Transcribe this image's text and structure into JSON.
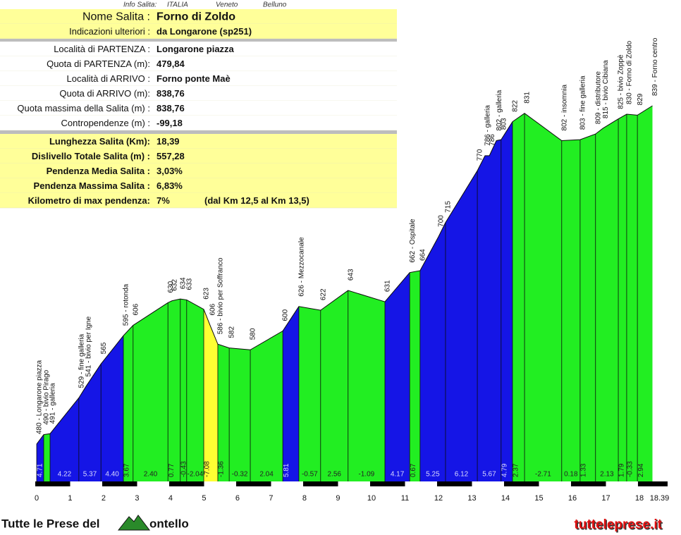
{
  "info": {
    "header": [
      "Info Salita:",
      "ITALIA",
      "Veneto",
      "Belluno"
    ],
    "top": [
      {
        "label": "Nome Salita :",
        "value": "Forno di Zoldo"
      },
      {
        "label": "Indicazioni ulteriori :",
        "value": "da Longarone (sp251)"
      }
    ],
    "details": [
      {
        "label": "Località di PARTENZA :",
        "value": "Longarone piazza"
      },
      {
        "label": "Quota di PARTENZA (m):",
        "value": "479,84"
      },
      {
        "label": "Località di ARRIVO :",
        "value": "Forno ponte Maè"
      },
      {
        "label": "Quota di ARRIVO (m):",
        "value": "838,76"
      },
      {
        "label": "Quota massima della Salita (m) :",
        "value": "838,76"
      },
      {
        "label": "Contropendenze (m) :",
        "value": "-99,18"
      }
    ],
    "summary": [
      {
        "label": "Lunghezza Salita (Km):",
        "value": "18,39"
      },
      {
        "label": "Dislivello Totale Salita (m) :",
        "value": "557,28"
      },
      {
        "label": "Pendenza Media Salita :",
        "value": "3,03%"
      },
      {
        "label": "Pendenza Massima Salita :",
        "value": "6,83%"
      },
      {
        "label": "Kilometro di max pendenza:",
        "value": "7%",
        "note": "(dal Km 12,5 al Km 13,5)"
      }
    ]
  },
  "chart_data": {
    "type": "area",
    "x": [
      0,
      0.21,
      0.4,
      1.26,
      1.47,
      1.92,
      2.59,
      2.88,
      3.92,
      4.04,
      4.29,
      4.48,
      4.99,
      5.18,
      5.41,
      5.75,
      6.38,
      7.35,
      7.83,
      8.48,
      9.3,
      10.4,
      11.14,
      11.45,
      12,
      12.21,
      13.16,
      13.39,
      13.52,
      13.73,
      13.87,
      14.21,
      14.57,
      15.68,
      16.23,
      16.69,
      16.91,
      17.37,
      17.62,
      17.94,
      18.39
    ],
    "values": [
      480,
      490,
      491,
      529,
      541,
      565,
      595,
      606,
      630,
      632,
      634,
      633,
      623,
      606,
      586,
      582,
      580,
      600,
      626,
      622,
      643,
      631,
      662,
      664,
      700,
      715,
      770,
      786,
      786,
      802,
      803,
      822,
      831,
      802,
      803,
      809,
      815,
      825,
      830,
      829,
      839
    ],
    "value_labels": [
      "480 - Longarone piazza",
      "490 - bivio Pirago",
      "491 - galleria",
      "529 - fine galleria",
      "541 - bivio per Igne",
      null,
      "595 - rotonda",
      null,
      null,
      null,
      null,
      null,
      null,
      null,
      "586 - bivio per Soffranco",
      null,
      null,
      null,
      "626 - Mezzocanale",
      null,
      null,
      null,
      "662 - Ospitale",
      null,
      null,
      null,
      null,
      "786 - galleria",
      null,
      "802 - galleria",
      null,
      null,
      null,
      "802 - insomnia",
      "803 - fine galleria",
      "809 - distributore",
      "815 - bivio Cibiana",
      "825 - bivio Zoppè",
      "830 - Forno di Zoldo",
      null,
      "839 - Forno centro"
    ],
    "segments": {
      "starts": [
        0,
        0.21,
        0.4,
        1.26,
        1.92,
        2.59,
        2.88,
        3.92,
        4.29,
        4.48,
        4.99,
        5.41,
        5.75,
        6.38,
        7.35,
        7.83,
        8.48,
        9.3,
        10.4,
        11.14,
        11.45,
        12.21,
        13.16,
        13.87,
        14.21,
        14.57,
        15.68,
        16.23,
        16.69,
        17.37,
        17.62,
        17.94
      ],
      "grades": [
        4.71,
        null,
        4.22,
        5.37,
        4.4,
        3.67,
        2.4,
        0.77,
        -0.43,
        -2.04,
        -7.08,
        -1.36,
        -0.32,
        2.04,
        5.81,
        -0.57,
        2.56,
        -1.09,
        4.17,
        0.67,
        5.25,
        6.12,
        5.67,
        4.79,
        2.37,
        -2.71,
        0.18,
        1.33,
        2.13,
        1.79,
        -0.33,
        2.94
      ],
      "grade_labels": [
        "4.71",
        null,
        "4.22",
        "5.37",
        "4.40",
        "3.67",
        "2.40",
        "0.77",
        "-0.43",
        "-2.04",
        "-7.08",
        "-1.36",
        "-0.32",
        "2.04",
        "5.81",
        "-0.57",
        "2.56",
        "-1.09",
        "4.17",
        "0.67",
        "5.25",
        "6.12",
        "5.67",
        "4.79",
        "2.37",
        "-2.71",
        "0.18",
        "1.33",
        "2.13",
        "1.79",
        "-0.33",
        "2.94"
      ],
      "colors": [
        "#1515e6",
        "#22ee22",
        "#1515e6",
        "#1515e6",
        "#1515e6",
        "#22ee22",
        "#22ee22",
        "#22ee22",
        "#22ee22",
        "#22ee22",
        "#ffff33",
        "#22ee22",
        "#22ee22",
        "#22ee22",
        "#1515e6",
        "#22ee22",
        "#22ee22",
        "#22ee22",
        "#1515e6",
        "#22ee22",
        "#1515e6",
        "#1515e6",
        "#1515e6",
        "#1515e6",
        "#22ee22",
        "#22ee22",
        "#22ee22",
        "#22ee22",
        "#22ee22",
        "#22ee22",
        "#22ee22",
        "#22ee22"
      ]
    },
    "xlim": [
      0,
      18.39
    ],
    "xticks": [
      0,
      1,
      2,
      3,
      4,
      5,
      6,
      7,
      8,
      9,
      10,
      11,
      12,
      13,
      14,
      15,
      16,
      17,
      18,
      18.39
    ]
  },
  "footer": {
    "left": "Tutte le Prese del",
    "left_tail": "ontello",
    "right": "tutteleprese.it"
  }
}
